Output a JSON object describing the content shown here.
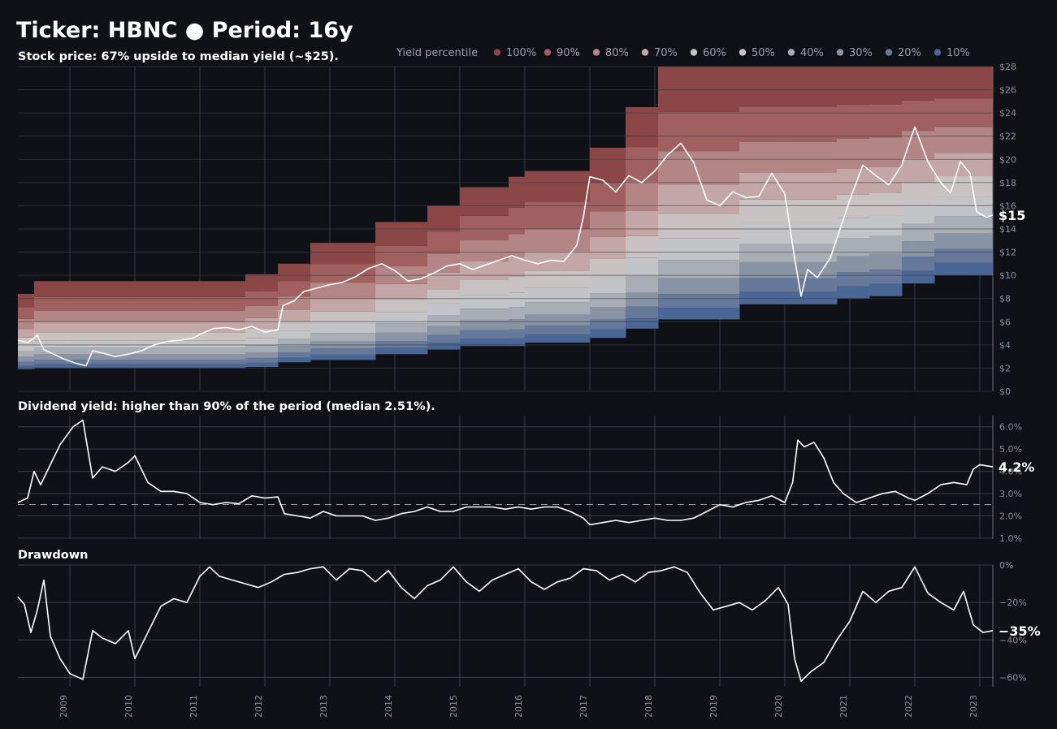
{
  "title": "Ticker: HBNC  ●  Period: 16y",
  "chart_data": [
    {
      "type": "area",
      "subtitle": "Stock price:  67% upside to median yield (~$25).",
      "legend_title": "Yield percentile",
      "legend": [
        {
          "label": "100%",
          "color": "#8b4646"
        },
        {
          "label": "90%",
          "color": "#a06060"
        },
        {
          "label": "80%",
          "color": "#b48585"
        },
        {
          "label": "70%",
          "color": "#c4a6a6"
        },
        {
          "label": "60%",
          "color": "#c8c2c2"
        },
        {
          "label": "50%",
          "color": "#c2c4c8"
        },
        {
          "label": "40%",
          "color": "#a8adb6"
        },
        {
          "label": "30%",
          "color": "#8893a3"
        },
        {
          "label": "20%",
          "color": "#67799a"
        },
        {
          "label": "10%",
          "color": "#4a6694"
        }
      ],
      "y_ticks": [
        "$0",
        "$2",
        "$4",
        "$6",
        "$8",
        "$10",
        "$12",
        "$14",
        "$16",
        "$18",
        "$20",
        "$22",
        "$24",
        "$26",
        "$28"
      ],
      "ylim": [
        0,
        28
      ],
      "price_series": [
        [
          2008.2,
          4.4
        ],
        [
          2008.35,
          4.2
        ],
        [
          2008.5,
          4.8
        ],
        [
          2008.6,
          3.6
        ],
        [
          2008.75,
          3.2
        ],
        [
          2008.9,
          2.8
        ],
        [
          2009.1,
          2.4
        ],
        [
          2009.25,
          2.2
        ],
        [
          2009.35,
          3.5
        ],
        [
          2009.5,
          3.3
        ],
        [
          2009.7,
          3.0
        ],
        [
          2009.9,
          3.2
        ],
        [
          2010.1,
          3.5
        ],
        [
          2010.3,
          4.0
        ],
        [
          2010.5,
          4.3
        ],
        [
          2010.7,
          4.4
        ],
        [
          2010.9,
          4.6
        ],
        [
          2011.0,
          4.9
        ],
        [
          2011.2,
          5.4
        ],
        [
          2011.4,
          5.5
        ],
        [
          2011.6,
          5.3
        ],
        [
          2011.8,
          5.6
        ],
        [
          2012.0,
          5.1
        ],
        [
          2012.2,
          5.3
        ],
        [
          2012.28,
          7.4
        ],
        [
          2012.45,
          7.8
        ],
        [
          2012.6,
          8.6
        ],
        [
          2012.8,
          8.9
        ],
        [
          2013.0,
          9.2
        ],
        [
          2013.2,
          9.4
        ],
        [
          2013.4,
          9.9
        ],
        [
          2013.6,
          10.6
        ],
        [
          2013.8,
          11.0
        ],
        [
          2014.0,
          10.4
        ],
        [
          2014.2,
          9.5
        ],
        [
          2014.4,
          9.7
        ],
        [
          2014.6,
          10.2
        ],
        [
          2014.8,
          10.8
        ],
        [
          2015.0,
          11.0
        ],
        [
          2015.2,
          10.5
        ],
        [
          2015.4,
          10.9
        ],
        [
          2015.6,
          11.3
        ],
        [
          2015.8,
          11.7
        ],
        [
          2016.0,
          11.3
        ],
        [
          2016.2,
          11.0
        ],
        [
          2016.4,
          11.3
        ],
        [
          2016.6,
          11.2
        ],
        [
          2016.8,
          12.6
        ],
        [
          2016.9,
          15.0
        ],
        [
          2017.0,
          18.5
        ],
        [
          2017.2,
          18.2
        ],
        [
          2017.4,
          17.2
        ],
        [
          2017.6,
          18.6
        ],
        [
          2017.8,
          18.0
        ],
        [
          2018.0,
          19.0
        ],
        [
          2018.2,
          20.4
        ],
        [
          2018.4,
          21.4
        ],
        [
          2018.6,
          19.7
        ],
        [
          2018.8,
          16.5
        ],
        [
          2019.0,
          16.0
        ],
        [
          2019.2,
          17.2
        ],
        [
          2019.4,
          16.7
        ],
        [
          2019.6,
          16.8
        ],
        [
          2019.8,
          18.8
        ],
        [
          2020.0,
          17.0
        ],
        [
          2020.15,
          11.5
        ],
        [
          2020.25,
          8.2
        ],
        [
          2020.35,
          10.5
        ],
        [
          2020.5,
          9.8
        ],
        [
          2020.7,
          11.5
        ],
        [
          2020.85,
          14.0
        ],
        [
          2021.0,
          16.5
        ],
        [
          2021.2,
          19.5
        ],
        [
          2021.4,
          18.6
        ],
        [
          2021.6,
          17.8
        ],
        [
          2021.8,
          19.5
        ],
        [
          2022.0,
          22.8
        ],
        [
          2022.2,
          19.8
        ],
        [
          2022.4,
          18.0
        ],
        [
          2022.55,
          17.1
        ],
        [
          2022.7,
          19.8
        ],
        [
          2022.85,
          18.8
        ],
        [
          2022.95,
          15.5
        ],
        [
          2023.1,
          15.0
        ],
        [
          2023.2,
          15.2
        ]
      ],
      "end_label": "$15"
    },
    {
      "type": "line",
      "subtitle": "Dividend yield: higher than 90% of the period (median 2.51%).",
      "y_ticks": [
        "1.0%",
        "2.0%",
        "3.0%",
        "4.0%",
        "5.0%",
        "6.0%"
      ],
      "ylim": [
        0.96,
        6.5
      ],
      "median": 2.51,
      "yield_series": [
        [
          2008.2,
          2.6
        ],
        [
          2008.35,
          2.8
        ],
        [
          2008.45,
          4.0
        ],
        [
          2008.55,
          3.4
        ],
        [
          2008.7,
          4.3
        ],
        [
          2008.85,
          5.2
        ],
        [
          2009.05,
          6.0
        ],
        [
          2009.2,
          6.3
        ],
        [
          2009.35,
          3.7
        ],
        [
          2009.5,
          4.2
        ],
        [
          2009.7,
          4.0
        ],
        [
          2009.9,
          4.4
        ],
        [
          2010.0,
          4.7
        ],
        [
          2010.2,
          3.5
        ],
        [
          2010.4,
          3.1
        ],
        [
          2010.6,
          3.1
        ],
        [
          2010.8,
          3.0
        ],
        [
          2011.0,
          2.6
        ],
        [
          2011.2,
          2.5
        ],
        [
          2011.4,
          2.6
        ],
        [
          2011.6,
          2.55
        ],
        [
          2011.8,
          2.9
        ],
        [
          2012.0,
          2.8
        ],
        [
          2012.2,
          2.85
        ],
        [
          2012.3,
          2.1
        ],
        [
          2012.5,
          2.0
        ],
        [
          2012.7,
          1.9
        ],
        [
          2012.9,
          2.2
        ],
        [
          2013.1,
          2.0
        ],
        [
          2013.3,
          2.0
        ],
        [
          2013.5,
          2.0
        ],
        [
          2013.7,
          1.8
        ],
        [
          2013.9,
          1.9
        ],
        [
          2014.1,
          2.1
        ],
        [
          2014.3,
          2.2
        ],
        [
          2014.5,
          2.4
        ],
        [
          2014.7,
          2.2
        ],
        [
          2014.9,
          2.2
        ],
        [
          2015.1,
          2.4
        ],
        [
          2015.3,
          2.4
        ],
        [
          2015.5,
          2.4
        ],
        [
          2015.7,
          2.3
        ],
        [
          2015.9,
          2.4
        ],
        [
          2016.1,
          2.3
        ],
        [
          2016.3,
          2.4
        ],
        [
          2016.5,
          2.4
        ],
        [
          2016.7,
          2.2
        ],
        [
          2016.9,
          1.9
        ],
        [
          2017.0,
          1.6
        ],
        [
          2017.2,
          1.7
        ],
        [
          2017.4,
          1.8
        ],
        [
          2017.6,
          1.7
        ],
        [
          2017.8,
          1.8
        ],
        [
          2018.0,
          1.9
        ],
        [
          2018.2,
          1.8
        ],
        [
          2018.4,
          1.8
        ],
        [
          2018.6,
          1.9
        ],
        [
          2018.8,
          2.2
        ],
        [
          2019.0,
          2.5
        ],
        [
          2019.2,
          2.4
        ],
        [
          2019.4,
          2.6
        ],
        [
          2019.6,
          2.7
        ],
        [
          2019.8,
          2.9
        ],
        [
          2020.0,
          2.6
        ],
        [
          2020.12,
          3.5
        ],
        [
          2020.2,
          5.4
        ],
        [
          2020.3,
          5.1
        ],
        [
          2020.45,
          5.3
        ],
        [
          2020.6,
          4.6
        ],
        [
          2020.75,
          3.5
        ],
        [
          2020.9,
          3.0
        ],
        [
          2021.1,
          2.6
        ],
        [
          2021.3,
          2.8
        ],
        [
          2021.5,
          3.0
        ],
        [
          2021.7,
          3.1
        ],
        [
          2021.9,
          2.8
        ],
        [
          2022.0,
          2.7
        ],
        [
          2022.2,
          3.0
        ],
        [
          2022.4,
          3.4
        ],
        [
          2022.6,
          3.5
        ],
        [
          2022.8,
          3.4
        ],
        [
          2022.9,
          4.1
        ],
        [
          2023.0,
          4.3
        ],
        [
          2023.2,
          4.2
        ]
      ],
      "end_label": "4.2%"
    },
    {
      "type": "line",
      "subtitle": "Drawdown",
      "y_ticks": [
        "0%",
        "−20%",
        "−40%",
        "−60%"
      ],
      "ylim": [
        -65,
        0
      ],
      "drawdown_series": [
        [
          2008.2,
          -17
        ],
        [
          2008.3,
          -21
        ],
        [
          2008.4,
          -36
        ],
        [
          2008.5,
          -24
        ],
        [
          2008.6,
          -8
        ],
        [
          2008.7,
          -38
        ],
        [
          2008.85,
          -50
        ],
        [
          2009.0,
          -58
        ],
        [
          2009.2,
          -61
        ],
        [
          2009.35,
          -35
        ],
        [
          2009.5,
          -39
        ],
        [
          2009.7,
          -42
        ],
        [
          2009.9,
          -35
        ],
        [
          2010.0,
          -50
        ],
        [
          2010.2,
          -36
        ],
        [
          2010.4,
          -22
        ],
        [
          2010.6,
          -18
        ],
        [
          2010.8,
          -20
        ],
        [
          2010.9,
          -13
        ],
        [
          2011.0,
          -6
        ],
        [
          2011.15,
          -1
        ],
        [
          2011.3,
          -6
        ],
        [
          2011.5,
          -8
        ],
        [
          2011.7,
          -10
        ],
        [
          2011.9,
          -12
        ],
        [
          2012.1,
          -9
        ],
        [
          2012.3,
          -5
        ],
        [
          2012.5,
          -4
        ],
        [
          2012.7,
          -2
        ],
        [
          2012.9,
          -1
        ],
        [
          2013.1,
          -8
        ],
        [
          2013.3,
          -2
        ],
        [
          2013.5,
          -3
        ],
        [
          2013.7,
          -9
        ],
        [
          2013.9,
          -3
        ],
        [
          2014.1,
          -12
        ],
        [
          2014.3,
          -18
        ],
        [
          2014.5,
          -11
        ],
        [
          2014.7,
          -8
        ],
        [
          2014.9,
          -1
        ],
        [
          2015.1,
          -9
        ],
        [
          2015.3,
          -14
        ],
        [
          2015.5,
          -8
        ],
        [
          2015.7,
          -5
        ],
        [
          2015.9,
          -2
        ],
        [
          2016.1,
          -9
        ],
        [
          2016.3,
          -13
        ],
        [
          2016.5,
          -9
        ],
        [
          2016.7,
          -7
        ],
        [
          2016.9,
          -2
        ],
        [
          2017.1,
          -3
        ],
        [
          2017.3,
          -8
        ],
        [
          2017.5,
          -5
        ],
        [
          2017.7,
          -9
        ],
        [
          2017.9,
          -4
        ],
        [
          2018.1,
          -3
        ],
        [
          2018.3,
          -1
        ],
        [
          2018.5,
          -4
        ],
        [
          2018.7,
          -15
        ],
        [
          2018.9,
          -24
        ],
        [
          2019.1,
          -22
        ],
        [
          2019.3,
          -20
        ],
        [
          2019.5,
          -24
        ],
        [
          2019.7,
          -19
        ],
        [
          2019.9,
          -12
        ],
        [
          2020.05,
          -21
        ],
        [
          2020.15,
          -50
        ],
        [
          2020.25,
          -62
        ],
        [
          2020.4,
          -57
        ],
        [
          2020.6,
          -52
        ],
        [
          2020.8,
          -40
        ],
        [
          2021.0,
          -30
        ],
        [
          2021.2,
          -14
        ],
        [
          2021.4,
          -20
        ],
        [
          2021.6,
          -14
        ],
        [
          2021.8,
          -12
        ],
        [
          2022.0,
          -1
        ],
        [
          2022.2,
          -15
        ],
        [
          2022.4,
          -20
        ],
        [
          2022.6,
          -24
        ],
        [
          2022.75,
          -14
        ],
        [
          2022.9,
          -32
        ],
        [
          2023.05,
          -36
        ],
        [
          2023.2,
          -35
        ]
      ],
      "end_label": "−35%"
    }
  ],
  "x_ticks": [
    "2009",
    "2010",
    "2011",
    "2012",
    "2013",
    "2014",
    "2015",
    "2016",
    "2017",
    "2018",
    "2019",
    "2020",
    "2021",
    "2022",
    "2023"
  ]
}
